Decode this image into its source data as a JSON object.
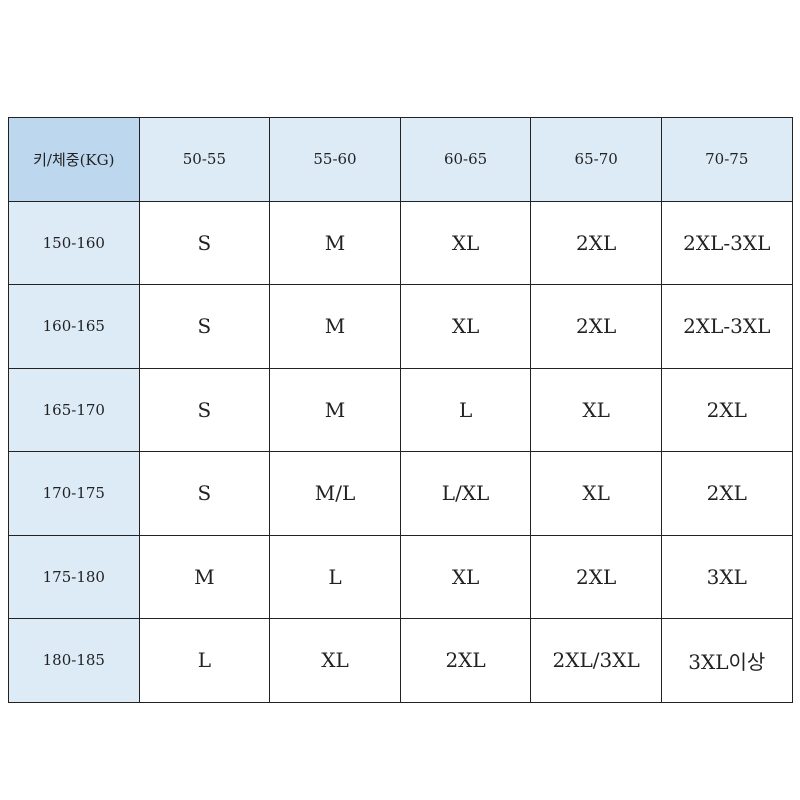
{
  "table": {
    "corner_label": "키/체중(KG)",
    "weight_ranges": [
      "50-55",
      "55-60",
      "60-65",
      "65-70",
      "70-75"
    ],
    "rows": [
      {
        "height": "150-160",
        "sizes": [
          "S",
          "M",
          "XL",
          "2XL",
          "2XL-3XL"
        ]
      },
      {
        "height": "160-165",
        "sizes": [
          "S",
          "M",
          "XL",
          "2XL",
          "2XL-3XL"
        ]
      },
      {
        "height": "165-170",
        "sizes": [
          "S",
          "M",
          "L",
          "XL",
          "2XL"
        ]
      },
      {
        "height": "170-175",
        "sizes": [
          "S",
          "M/L",
          "L/XL",
          "XL",
          "2XL"
        ]
      },
      {
        "height": "175-180",
        "sizes": [
          "M",
          "L",
          "XL",
          "2XL",
          "3XL"
        ]
      },
      {
        "height": "180-185",
        "sizes": [
          "L",
          "XL",
          "2XL",
          "2XL/3XL",
          "3XL이상"
        ]
      }
    ],
    "colors": {
      "corner": "#bdd7ee",
      "header": "#ddebf7",
      "border": "#222222"
    }
  }
}
